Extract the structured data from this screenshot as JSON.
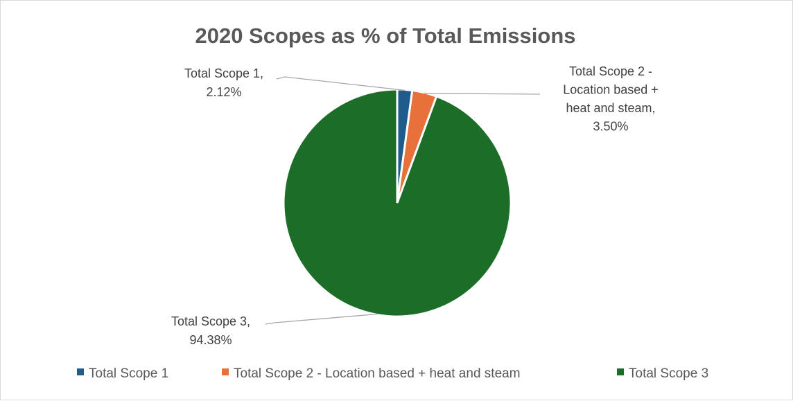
{
  "chart_data": {
    "type": "pie",
    "title": "2020 Scopes as % of Total Emissions",
    "categories": [
      "Total Scope 1",
      "Total Scope 2 - Location based + heat and steam",
      "Total Scope 3"
    ],
    "values": [
      2.12,
      3.5,
      94.38
    ],
    "unit": "%",
    "colors": [
      "#1f5c8b",
      "#e8703a",
      "#1b6d28"
    ],
    "data_labels": [
      [
        "Total Scope 1,",
        "2.12%"
      ],
      [
        "Total Scope 2 -",
        "Location based +",
        "heat and steam,",
        "3.50%"
      ],
      [
        "Total Scope 3,",
        "94.38%"
      ]
    ],
    "legend": {
      "position": "bottom",
      "entries": [
        "Total Scope 1",
        "Total Scope 2 - Location based + heat and steam",
        "Total Scope 3"
      ]
    }
  }
}
